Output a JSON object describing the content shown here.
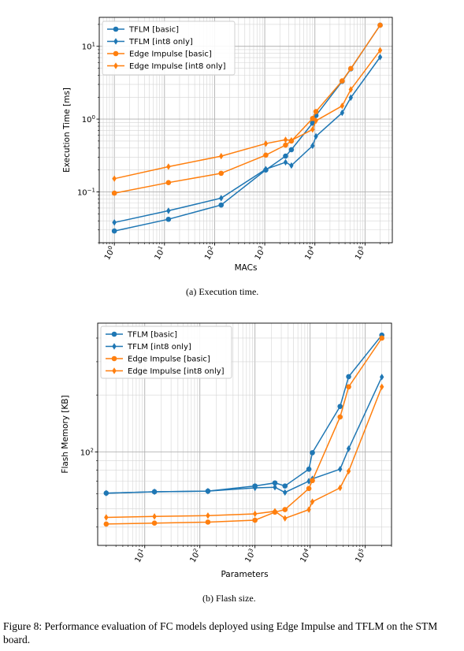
{
  "chart_data": [
    {
      "type": "line",
      "xscale": "log",
      "yscale": "log",
      "xlabel": "MACs",
      "ylabel": "Execution Time [ms]",
      "xlim": [
        0.5,
        350000
      ],
      "ylim": [
        0.02,
        25
      ],
      "xticks": [
        {
          "v": 1,
          "b": "10",
          "e": "0"
        },
        {
          "v": 10,
          "b": "10",
          "e": "1"
        },
        {
          "v": 100,
          "b": "10",
          "e": "2"
        },
        {
          "v": 1000,
          "b": "10",
          "e": "3"
        },
        {
          "v": 10000,
          "b": "10",
          "e": "4"
        },
        {
          "v": 100000,
          "b": "10",
          "e": "5"
        }
      ],
      "yticks": [
        {
          "v": 0.1,
          "b": "10",
          "e": "−1"
        },
        {
          "v": 1,
          "b": "10",
          "e": "0"
        },
        {
          "v": 10,
          "b": "10",
          "e": "1"
        }
      ],
      "xtick_rotation": -60,
      "grid": true,
      "legend": "top-left",
      "caption": "(a) Execution time.",
      "series": [
        {
          "name": "TFLM [basic]",
          "color": "#1f77b4",
          "marker": "circle",
          "x": [
            1,
            12,
            135,
            1050,
            2600,
            3400,
            9000,
            10500,
            35000,
            52000,
            200000
          ],
          "y": [
            0.029,
            0.042,
            0.066,
            0.2,
            0.31,
            0.38,
            0.88,
            1.12,
            3.3,
            4.9,
            19.5
          ]
        },
        {
          "name": "TFLM [int8 only]",
          "color": "#1f77b4",
          "marker": "diamond",
          "x": [
            1,
            12,
            135,
            1050,
            2600,
            3400,
            9000,
            10500,
            35000,
            52000,
            200000
          ],
          "y": [
            0.038,
            0.055,
            0.082,
            0.205,
            0.255,
            0.23,
            0.43,
            0.58,
            1.22,
            1.97,
            7.1
          ]
        },
        {
          "name": "Edge Impulse [basic]",
          "color": "#ff7f0e",
          "marker": "circle",
          "x": [
            1,
            12,
            135,
            1050,
            2600,
            3400,
            9000,
            10500,
            35000,
            52000,
            200000
          ],
          "y": [
            0.096,
            0.134,
            0.18,
            0.32,
            0.44,
            0.5,
            1.02,
            1.27,
            3.35,
            4.95,
            19.5
          ]
        },
        {
          "name": "Edge Impulse [int8 only]",
          "color": "#ff7f0e",
          "marker": "diamond",
          "x": [
            1,
            12,
            135,
            1050,
            2600,
            3400,
            9000,
            10500,
            35000,
            52000,
            200000
          ],
          "y": [
            0.152,
            0.222,
            0.31,
            0.46,
            0.52,
            0.51,
            0.72,
            0.95,
            1.52,
            2.55,
            8.8
          ]
        }
      ]
    },
    {
      "type": "line",
      "xscale": "log",
      "yscale": "log",
      "xlabel": "Parameters",
      "ylabel": "Flash Memory [KB]",
      "xlim": [
        1.4,
        300000
      ],
      "ylim": [
        32,
        480
      ],
      "xticks": [
        {
          "v": 10,
          "b": "10",
          "e": "1"
        },
        {
          "v": 100,
          "b": "10",
          "e": "2"
        },
        {
          "v": 1000,
          "b": "10",
          "e": "3"
        },
        {
          "v": 10000,
          "b": "10",
          "e": "4"
        },
        {
          "v": 100000,
          "b": "10",
          "e": "5"
        }
      ],
      "yticks": [
        {
          "v": 100,
          "b": "10",
          "e": "2"
        }
      ],
      "xtick_rotation": -60,
      "grid": true,
      "legend": "top-left",
      "caption": "(b) Flash size.",
      "series": [
        {
          "name": "TFLM [basic]",
          "color": "#1f77b4",
          "marker": "circle",
          "x": [
            2,
            15,
            140,
            1000,
            2300,
            3500,
            9500,
            11000,
            35000,
            50000,
            200000
          ],
          "y": [
            60.5,
            61.5,
            62,
            66,
            68.5,
            66,
            81,
            99,
            174,
            250,
            415
          ]
        },
        {
          "name": "TFLM [int8 only]",
          "color": "#1f77b4",
          "marker": "diamond",
          "x": [
            2,
            15,
            140,
            1000,
            2300,
            3500,
            9500,
            11000,
            35000,
            50000,
            200000
          ],
          "y": [
            60.5,
            61.5,
            62,
            64.5,
            65,
            61,
            70,
            72,
            81,
            104,
            249
          ]
        },
        {
          "name": "Edge Impulse [basic]",
          "color": "#ff7f0e",
          "marker": "circle",
          "x": [
            2,
            15,
            140,
            1000,
            2300,
            3500,
            9500,
            11000,
            35000,
            50000,
            200000
          ],
          "y": [
            41.5,
            42,
            42.5,
            43.5,
            48,
            49.5,
            64,
            70.5,
            153,
            221,
            400
          ]
        },
        {
          "name": "Edge Impulse [int8 only]",
          "color": "#ff7f0e",
          "marker": "diamond",
          "x": [
            2,
            15,
            140,
            1000,
            2300,
            3500,
            9500,
            11000,
            35000,
            50000,
            200000
          ],
          "y": [
            45,
            45.5,
            46,
            47,
            48.5,
            44.5,
            49.5,
            54.5,
            64.5,
            79,
            221
          ]
        }
      ]
    }
  ],
  "figure_caption": "Figure 8: Performance evaluation of FC models deployed using Edge Impulse and TFLM on the STM board."
}
